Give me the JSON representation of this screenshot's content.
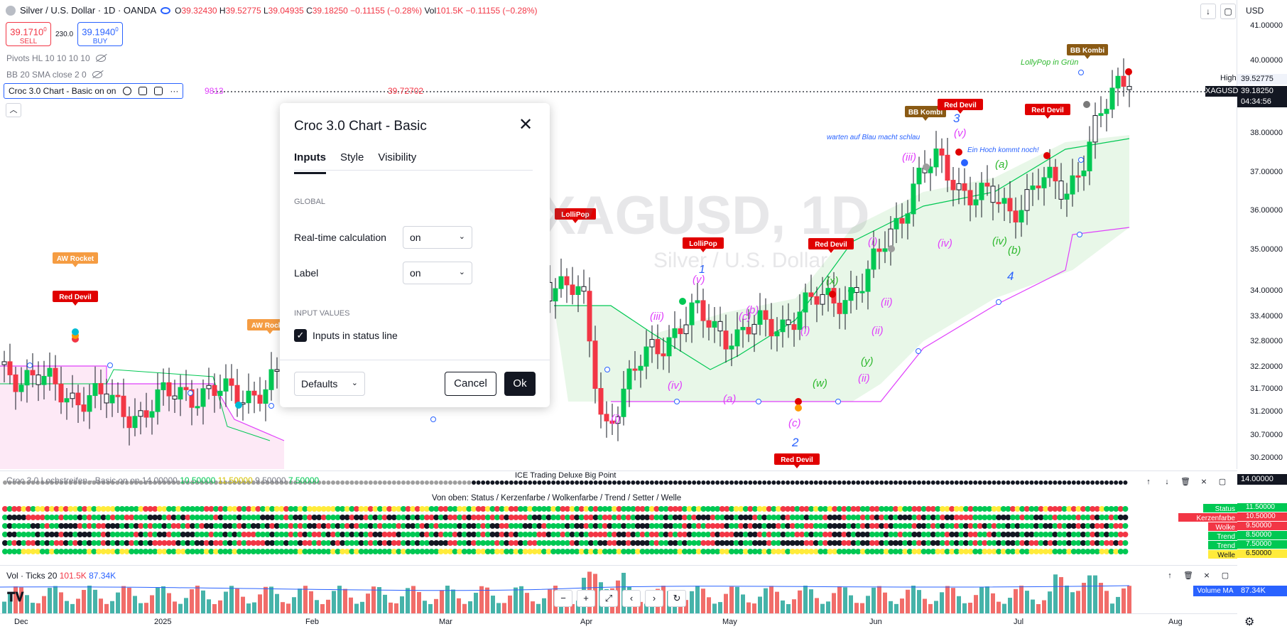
{
  "header": {
    "symbol": "Silver / U.S. Dollar · 1D · OANDA",
    "ohlc": {
      "open_label": "O",
      "open": "39.32430",
      "high_label": "H",
      "high": "39.52775",
      "low_label": "L",
      "low": "39.04935",
      "close_label": "C",
      "close": "39.18250",
      "change": "−0.11155 (−0.28%)",
      "vol_label": "Vol",
      "vol": "101.5K",
      "vol_change": "−0.11155 (−0.28%)"
    },
    "sell_price": "39.1710",
    "sell_price_small": "0",
    "sell_label": "SELL",
    "spread": "230.0",
    "buy_price": "39.1940",
    "buy_price_small": "0",
    "buy_label": "BUY",
    "indicators": [
      "Pivots HL 10 10 10 10",
      "BB 20 SMA close 2 0"
    ],
    "active_indicator": "Croc 3.0 Chart - Basic on on",
    "active_indicator_values": "9813",
    "active_indicator_value2": "39.72702",
    "currency": "USD"
  },
  "watermark": {
    "symbol": "XAGUSD, 1D",
    "name": "Silver / U.S. Dollar"
  },
  "price_axis": {
    "labels": [
      "41.00000",
      "40.00000",
      "38.00000",
      "37.00000",
      "36.00000",
      "35.00000",
      "34.00000",
      "33.40000",
      "32.80000",
      "32.20000",
      "31.70000",
      "31.20000",
      "30.70000",
      "30.20000"
    ],
    "high_label": "High",
    "high_value": "39.52775",
    "symbol_tag": "XAGUSD",
    "last_price": "39.18250",
    "countdown": "04:34:56"
  },
  "chart_annotations": {
    "lollipop_green": "LollyPop in Grün",
    "bb_kombi": "BB Kombi",
    "red_devil": "Red Devil",
    "aw_rocket": "AW Rocket",
    "lollipop": "LolliPop",
    "warten": "warten auf Blau macht schlau",
    "ein_hoch": "Ein Hoch kommt noch!",
    "wave_labels": [
      "(iii)",
      "(iv)",
      "(v)",
      "(i)",
      "(ii)",
      "(a)",
      "(b)",
      "(c)",
      "(x)",
      "(y)",
      "(w)",
      "(iv)",
      "(i)",
      "(v)",
      "(ii)",
      "(i)",
      "(iii)",
      "(iv)",
      "(a)",
      "(b)",
      "(c)",
      "(ii)"
    ],
    "wave_numbers": [
      "1",
      "2",
      "3",
      "4"
    ]
  },
  "dialog": {
    "title": "Croc 3.0 Chart - Basic",
    "tabs": [
      "Inputs",
      "Style",
      "Visibility"
    ],
    "section_global": "GLOBAL",
    "realtime_label": "Real-time calculation",
    "realtime_value": "on",
    "label_label": "Label",
    "label_value": "on",
    "section_input": "INPUT VALUES",
    "status_line_label": "Inputs in status line",
    "status_line_checked": true,
    "defaults": "Defaults",
    "cancel": "Cancel",
    "ok": "Ok"
  },
  "pane1": {
    "title": "Croc 3.0 Lochstreifen - Basic on on",
    "values": [
      "14.00000",
      "10.50000",
      "11.50000",
      "9.50000",
      "7.50000"
    ],
    "center_label": "ICE Trading Deluxe Big Point",
    "legend": "Von oben: Status / Kerzenfarbe / Wolkenfarbe / Trend / Setter / Welle",
    "axis_value": "14.00000",
    "tags": [
      {
        "label": "Status",
        "value": "11.50000",
        "color": "#00c853"
      },
      {
        "label": "Kerzenfarbe",
        "value": "10.50000",
        "color": "#f23645"
      },
      {
        "label": "Wolke",
        "value": "9.50000",
        "color": "#f23645"
      },
      {
        "label": "Trend",
        "value": "8.50000",
        "color": "#00c853"
      },
      {
        "label": "Trend",
        "value": "7.50000",
        "color": "#00c853"
      },
      {
        "label": "Welle",
        "value": "6.50000",
        "color": "#ffeb3b"
      }
    ]
  },
  "pane2": {
    "title": "Vol · Ticks 20",
    "vol": "101.5K",
    "vol_ma": "87.34K",
    "ma_tag": "Volume MA",
    "ma_value": "87.34K"
  },
  "time_axis": [
    "Dec",
    "2025",
    "Feb",
    "Mar",
    "Apr",
    "May",
    "Jun",
    "Jul",
    "Aug"
  ],
  "colors": {
    "up": "#00c853",
    "down": "#f23645",
    "cloud_green": "#e8f7e8",
    "cloud_pink": "#fde9f6",
    "blue": "#2962ff",
    "magenta": "#e040fb",
    "accent": "#131722"
  }
}
